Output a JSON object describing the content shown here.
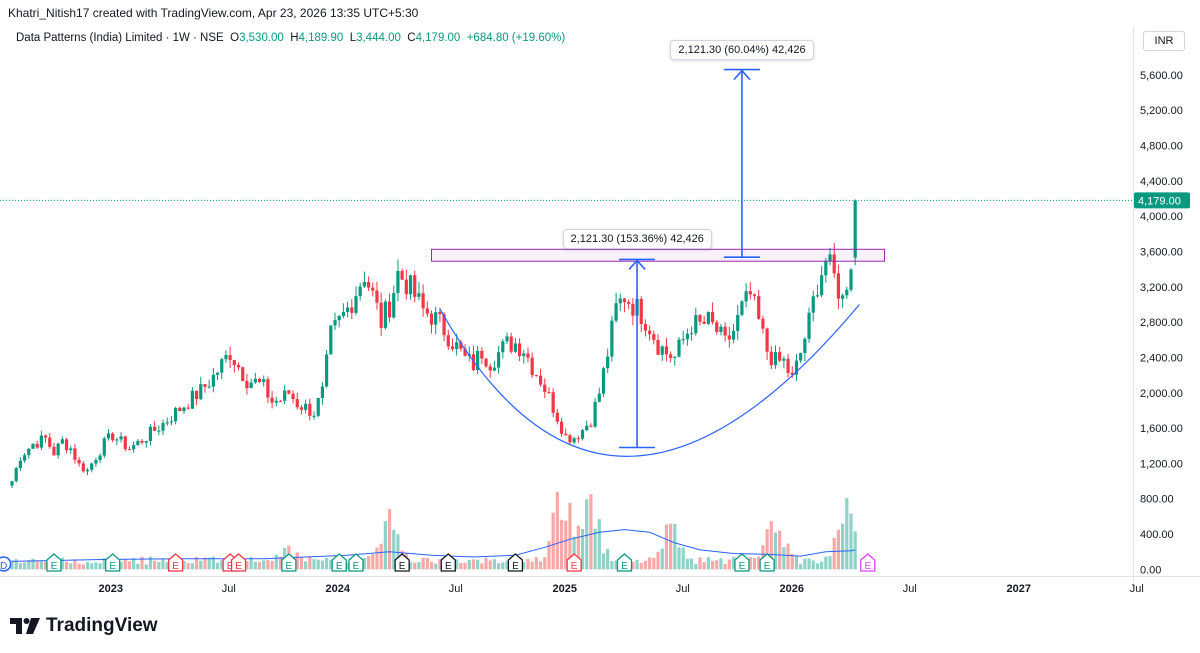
{
  "header": {
    "created_line": "Khatri_Nitish17 created with TradingView.com, Apr 23, 2026 13:35 UTC+5:30"
  },
  "legend": {
    "symbol": "Data Patterns (India) Limited · 1W · NSE",
    "o_label": "O",
    "o_value": "3,530.00",
    "h_label": "H",
    "h_value": "4,189.90",
    "l_label": "L",
    "l_value": "3,444.00",
    "c_label": "C",
    "c_value": "4,179.00",
    "change": "+684.80 (+19.60%)"
  },
  "currency": "INR",
  "branding": {
    "name": "TradingView"
  },
  "colors": {
    "up": "#089981",
    "down": "#f23645",
    "up_vol": "#8fd3c8",
    "down_vol": "#f7a9a7",
    "line": "#2962ff",
    "rect": "#9c27b0"
  },
  "chart_data": {
    "type": "candlestick",
    "title": "Data Patterns (India) Limited · 1W · NSE",
    "ylim": [
      -30,
      5950
    ],
    "y_ticks": [
      0,
      400,
      800,
      1200,
      1600,
      2000,
      2400,
      2800,
      3200,
      3600,
      4000,
      4400,
      4800,
      5200,
      5600
    ],
    "y_tick_labels": [
      "0.00",
      "400.00",
      "800.00",
      "1,200.00",
      "1,600.00",
      "2,000.00",
      "2,400.00",
      "2,800.00",
      "3,200.00",
      "3,600.00",
      "4,000.00",
      "4,400.00",
      "4,800.00",
      "5,200.00",
      "5,600.00"
    ],
    "x_labels": [
      {
        "t": 1.4,
        "label": "2023",
        "bold": true
      },
      {
        "t": 1.92,
        "label": "Jul",
        "bold": false
      },
      {
        "t": 2.4,
        "label": "2024",
        "bold": true
      },
      {
        "t": 2.92,
        "label": "Jul",
        "bold": false
      },
      {
        "t": 3.4,
        "label": "2025",
        "bold": true
      },
      {
        "t": 3.92,
        "label": "Jul",
        "bold": false
      },
      {
        "t": 4.4,
        "label": "2026",
        "bold": true
      },
      {
        "t": 4.92,
        "label": "Jul",
        "bold": false
      },
      {
        "t": 5.4,
        "label": "2027",
        "bold": true
      },
      {
        "t": 5.92,
        "label": "Jul",
        "bold": false
      }
    ],
    "last_price": 4179,
    "last_price_label": "4,179.00",
    "anchors": [
      [
        0,
        1000
      ],
      [
        2,
        1280
      ],
      [
        5,
        1420
      ],
      [
        8,
        1480
      ],
      [
        10,
        1320
      ],
      [
        12,
        1450
      ],
      [
        14,
        1370
      ],
      [
        16,
        1180
      ],
      [
        18,
        1120
      ],
      [
        20,
        1280
      ],
      [
        22,
        1420
      ],
      [
        24,
        1520
      ],
      [
        26,
        1440
      ],
      [
        28,
        1370
      ],
      [
        30,
        1430
      ],
      [
        33,
        1540
      ],
      [
        36,
        1650
      ],
      [
        39,
        1780
      ],
      [
        42,
        1900
      ],
      [
        45,
        2020
      ],
      [
        48,
        2180
      ],
      [
        52,
        2460
      ],
      [
        54,
        2300
      ],
      [
        56,
        2150
      ],
      [
        58,
        2120
      ],
      [
        60,
        2060
      ],
      [
        62,
        1900
      ],
      [
        64,
        1920
      ],
      [
        66,
        2000
      ],
      [
        68,
        1880
      ],
      [
        70,
        1830
      ],
      [
        72,
        1780
      ],
      [
        74,
        2000
      ],
      [
        76,
        2650
      ],
      [
        78,
        2800
      ],
      [
        80,
        2950
      ],
      [
        82,
        3150
      ],
      [
        84,
        3350
      ],
      [
        86,
        3100
      ],
      [
        88,
        2800
      ],
      [
        90,
        3000
      ],
      [
        92,
        3350
      ],
      [
        94,
        3250
      ],
      [
        96,
        3100
      ],
      [
        98,
        2930
      ],
      [
        100,
        2880
      ],
      [
        102,
        2780
      ],
      [
        104,
        2650
      ],
      [
        106,
        2520
      ],
      [
        108,
        2380
      ],
      [
        110,
        2320
      ],
      [
        112,
        2470
      ],
      [
        114,
        2350
      ],
      [
        116,
        2450
      ],
      [
        118,
        2550
      ],
      [
        120,
        2560
      ],
      [
        122,
        2500
      ],
      [
        124,
        2300
      ],
      [
        126,
        2150
      ],
      [
        128,
        1950
      ],
      [
        130,
        1730
      ],
      [
        132,
        1500
      ],
      [
        134,
        1500
      ],
      [
        136,
        1580
      ],
      [
        138,
        1700
      ],
      [
        140,
        2000
      ],
      [
        142,
        2450
      ],
      [
        144,
        2950
      ],
      [
        146,
        3100
      ],
      [
        148,
        3000
      ],
      [
        150,
        2900
      ],
      [
        152,
        2750
      ],
      [
        154,
        2550
      ],
      [
        156,
        2450
      ],
      [
        158,
        2400
      ],
      [
        160,
        2600
      ],
      [
        162,
        2780
      ],
      [
        164,
        2760
      ],
      [
        166,
        2800
      ],
      [
        168,
        2700
      ],
      [
        170,
        2550
      ],
      [
        172,
        2700
      ],
      [
        174,
        2950
      ],
      [
        176,
        3100
      ],
      [
        178,
        2800
      ],
      [
        180,
        2480
      ],
      [
        182,
        2350
      ],
      [
        184,
        2350
      ],
      [
        186,
        2150
      ],
      [
        188,
        2450
      ],
      [
        190,
        2800
      ],
      [
        192,
        3250
      ],
      [
        194,
        3500
      ],
      [
        196,
        3300
      ],
      [
        198,
        3050
      ],
      [
        200,
        3500
      ],
      [
        201,
        4179
      ]
    ],
    "volume_bumps": [
      [
        66,
        170
      ],
      [
        90,
        550
      ],
      [
        131,
        840
      ],
      [
        138,
        720
      ],
      [
        157,
        420
      ],
      [
        182,
        510
      ],
      [
        199,
        580
      ]
    ],
    "volume_ma": [
      [
        0,
        90
      ],
      [
        20,
        110
      ],
      [
        40,
        120
      ],
      [
        60,
        120
      ],
      [
        80,
        160
      ],
      [
        90,
        200
      ],
      [
        100,
        160
      ],
      [
        110,
        140
      ],
      [
        120,
        160
      ],
      [
        127,
        250
      ],
      [
        133,
        340
      ],
      [
        140,
        420
      ],
      [
        146,
        450
      ],
      [
        152,
        420
      ],
      [
        158,
        300
      ],
      [
        164,
        220
      ],
      [
        172,
        180
      ],
      [
        180,
        170
      ],
      [
        188,
        150
      ],
      [
        194,
        200
      ],
      [
        200,
        210
      ],
      [
        201,
        220
      ]
    ],
    "drawings": {
      "cup_curve": {
        "from": [
          102,
          2950
        ],
        "vertex": [
          147,
          1280
        ],
        "to": [
          202,
          3000
        ]
      },
      "resistance_box": {
        "x0": 100,
        "x1": 208,
        "y0": 3490,
        "y1": 3625
      },
      "measure_1": {
        "x": 149,
        "y0": 1380,
        "y1": 3510,
        "label": "2,121.30 (153.36%) 42,426"
      },
      "measure_2": {
        "x": 174,
        "y0": 3535,
        "y1": 5660,
        "label": "2,121.30 (60.04%) 42,426"
      }
    },
    "event_markers": [
      {
        "i": -2,
        "label": "D",
        "kind": "D"
      },
      {
        "i": 10,
        "label": "E",
        "kind": "E"
      },
      {
        "i": 24,
        "label": "E",
        "kind": "E"
      },
      {
        "i": 39,
        "label": "E",
        "kind": "Er"
      },
      {
        "i": 52,
        "label": "E",
        "kind": "Er"
      },
      {
        "i": 54,
        "label": "E",
        "kind": "Er"
      },
      {
        "i": 66,
        "label": "E",
        "kind": "E"
      },
      {
        "i": 78,
        "label": "E",
        "kind": "E"
      },
      {
        "i": 82,
        "label": "E",
        "kind": "E"
      },
      {
        "i": 93,
        "label": "E",
        "kind": "K"
      },
      {
        "i": 104,
        "label": "E",
        "kind": "K"
      },
      {
        "i": 120,
        "label": "E",
        "kind": "K"
      },
      {
        "i": 134,
        "label": "E",
        "kind": "Er"
      },
      {
        "i": 146,
        "label": "E",
        "kind": "E"
      },
      {
        "i": 174,
        "label": "E",
        "kind": "E"
      },
      {
        "i": 180,
        "label": "E",
        "kind": "E"
      },
      {
        "i": 204,
        "label": "E",
        "kind": "P"
      }
    ]
  }
}
